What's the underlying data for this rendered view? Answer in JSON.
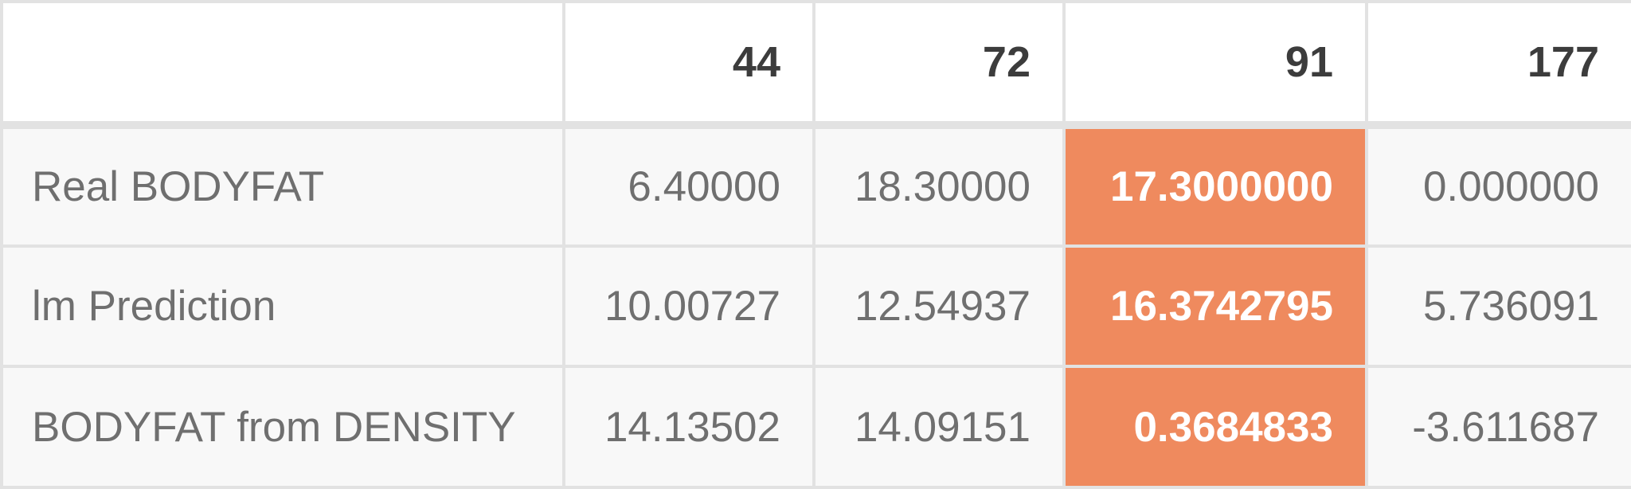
{
  "table": {
    "columns": [
      "",
      "44",
      "72",
      "91",
      "177"
    ],
    "rows": [
      {
        "label": "Real BODYFAT",
        "values": [
          "6.40000",
          "18.30000",
          "17.3000000",
          "0.000000"
        ]
      },
      {
        "label": "lm Prediction",
        "values": [
          "10.00727",
          "12.54937",
          "16.3742795",
          "5.736091"
        ]
      },
      {
        "label": "BODYFAT from DENSITY",
        "values": [
          "14.13502",
          "14.09151",
          "0.3684833",
          "-3.611687"
        ]
      }
    ],
    "highlight_column": "91",
    "colors": {
      "highlight_bg": "#ef8a5e",
      "highlight_text": "#ffffff",
      "header_text": "#3c3c3c",
      "cell_text": "#6f6f6f",
      "body_bg": "#f8f8f8",
      "border": "#e2e2e2"
    }
  }
}
